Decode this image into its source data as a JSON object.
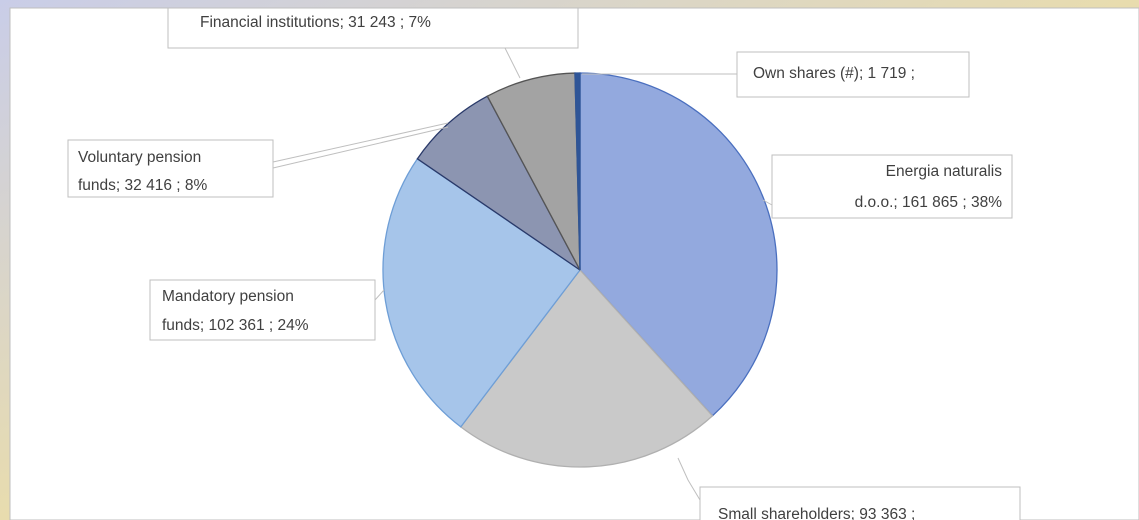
{
  "chart_data": {
    "type": "pie",
    "labels": [
      [
        "Energia naturalis",
        "d.o.o.;  161 865 ; 38%"
      ],
      [
        "Small shareholders;  93 363 ;"
      ],
      [
        "Mandatory pension",
        "funds;  102 361 ; 24%"
      ],
      [
        "Voluntary pension",
        "funds;  32 416 ; 8%"
      ],
      [
        "Financial institutions;  31 243 ; 7%"
      ],
      [
        "Own shares (#);  1 719 ;"
      ]
    ],
    "values": [
      161865,
      93363,
      102361,
      32416,
      31243,
      1719
    ],
    "colors": [
      "#93a9de",
      "#c9c9c9",
      "#a6c5ea",
      "#8c95b1",
      "#a3a3a3",
      "#2f5597"
    ],
    "edge_colors": [
      "#4a6fbf",
      "#b0b0b0",
      "#6e9ed6",
      "#2a3a6a",
      "#555555",
      "#2f5597"
    ]
  }
}
